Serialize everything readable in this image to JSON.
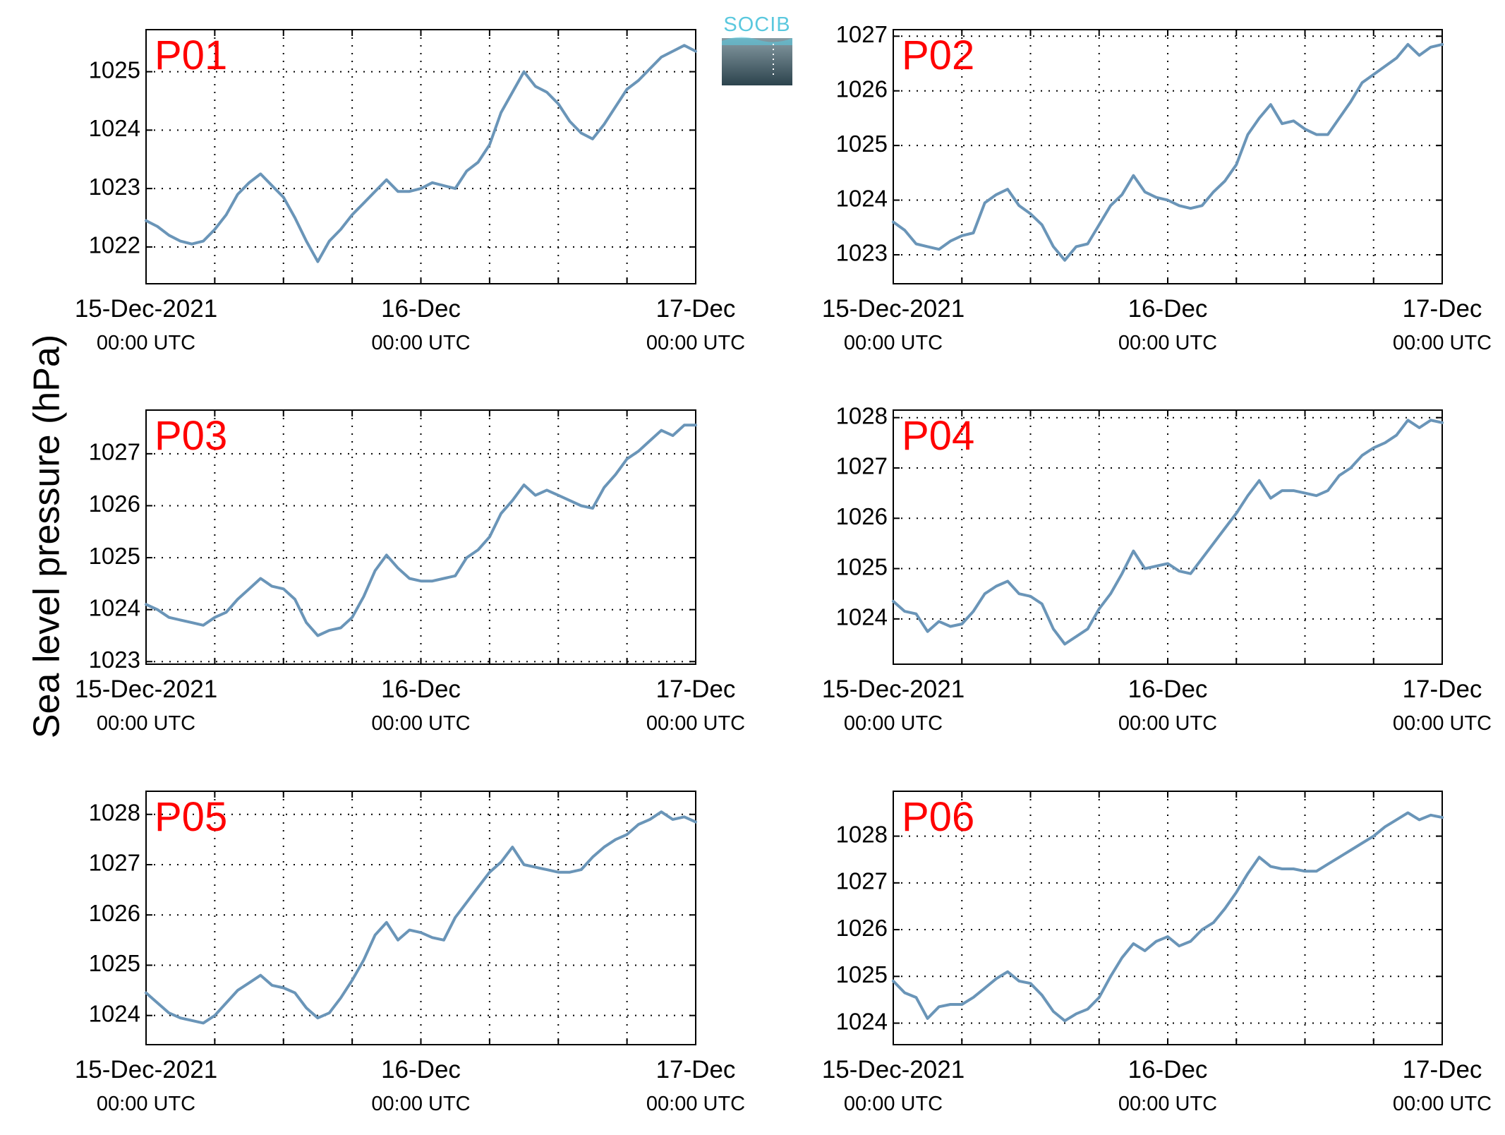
{
  "figure": {
    "ylabel": "Sea level pressure (hPa)",
    "logo_text": "SOCIB"
  },
  "colors": {
    "line": "#6a95b8",
    "panel_label": "#ff0000",
    "logo_text": "#5ac8de",
    "logo_top": "#b5c8cf",
    "logo_bottom": "#2c434d"
  },
  "chart_data": [
    {
      "type": "line",
      "panel_label": "P01",
      "x_range": [
        0,
        48
      ],
      "x_ticks": [
        {
          "x": 0,
          "label": "15-Dec-2021",
          "sub": "00:00 UTC"
        },
        {
          "x": 24,
          "label": "16-Dec",
          "sub": "00:00 UTC"
        },
        {
          "x": 48,
          "label": "17-Dec",
          "sub": "00:00 UTC"
        }
      ],
      "minor_x": [
        6,
        12,
        18,
        30,
        36,
        42
      ],
      "y_ticks": [
        1022,
        1023,
        1024,
        1025
      ],
      "ylim": [
        1021.37,
        1025.72
      ],
      "grid": true,
      "x": [
        0,
        1,
        2,
        3,
        4,
        5,
        6,
        7,
        8,
        9,
        10,
        11,
        12,
        13,
        14,
        15,
        16,
        17,
        18,
        19,
        20,
        21,
        22,
        23,
        24,
        25,
        26,
        27,
        28,
        29,
        30,
        31,
        32,
        33,
        34,
        35,
        36,
        37,
        38,
        39,
        40,
        41,
        42,
        43,
        44,
        45,
        46,
        47,
        48
      ],
      "values": [
        1022.45,
        1022.35,
        1022.2,
        1022.1,
        1022.05,
        1022.1,
        1022.3,
        1022.55,
        1022.9,
        1023.1,
        1023.25,
        1023.05,
        1022.85,
        1022.5,
        1022.1,
        1021.75,
        1022.1,
        1022.3,
        1022.55,
        1022.75,
        1022.95,
        1023.15,
        1022.95,
        1022.95,
        1023.0,
        1023.1,
        1023.05,
        1023.0,
        1023.3,
        1023.45,
        1023.75,
        1024.3,
        1024.65,
        1025.0,
        1024.75,
        1024.65,
        1024.45,
        1024.15,
        1023.95,
        1023.85,
        1024.1,
        1024.4,
        1024.7,
        1024.85,
        1025.05,
        1025.25,
        1025.35,
        1025.45,
        1025.35
      ]
    },
    {
      "type": "line",
      "panel_label": "P02",
      "x_range": [
        0,
        48
      ],
      "x_ticks": [
        {
          "x": 0,
          "label": "15-Dec-2021",
          "sub": "00:00 UTC"
        },
        {
          "x": 24,
          "label": "16-Dec",
          "sub": "00:00 UTC"
        },
        {
          "x": 48,
          "label": "17-Dec",
          "sub": "00:00 UTC"
        }
      ],
      "minor_x": [
        6,
        12,
        18,
        30,
        36,
        42
      ],
      "y_ticks": [
        1023,
        1024,
        1025,
        1026,
        1027
      ],
      "ylim": [
        1022.47,
        1027.12
      ],
      "grid": true,
      "x": [
        0,
        1,
        2,
        3,
        4,
        5,
        6,
        7,
        8,
        9,
        10,
        11,
        12,
        13,
        14,
        15,
        16,
        17,
        18,
        19,
        20,
        21,
        22,
        23,
        24,
        25,
        26,
        27,
        28,
        29,
        30,
        31,
        32,
        33,
        34,
        35,
        36,
        37,
        38,
        39,
        40,
        41,
        42,
        43,
        44,
        45,
        46,
        47,
        48
      ],
      "values": [
        1023.6,
        1023.45,
        1023.2,
        1023.15,
        1023.1,
        1023.25,
        1023.35,
        1023.4,
        1023.95,
        1024.1,
        1024.2,
        1023.9,
        1023.75,
        1023.55,
        1023.15,
        1022.9,
        1023.15,
        1023.2,
        1023.55,
        1023.9,
        1024.1,
        1024.45,
        1024.15,
        1024.05,
        1024.0,
        1023.9,
        1023.85,
        1023.9,
        1024.15,
        1024.35,
        1024.65,
        1025.2,
        1025.5,
        1025.75,
        1025.4,
        1025.45,
        1025.3,
        1025.2,
        1025.2,
        1025.5,
        1025.8,
        1026.15,
        1026.3,
        1026.45,
        1026.6,
        1026.85,
        1026.65,
        1026.8,
        1026.85
      ]
    },
    {
      "type": "line",
      "panel_label": "P03",
      "x_range": [
        0,
        48
      ],
      "x_ticks": [
        {
          "x": 0,
          "label": "15-Dec-2021",
          "sub": "00:00 UTC"
        },
        {
          "x": 24,
          "label": "16-Dec",
          "sub": "00:00 UTC"
        },
        {
          "x": 48,
          "label": "17-Dec",
          "sub": "00:00 UTC"
        }
      ],
      "minor_x": [
        6,
        12,
        18,
        30,
        36,
        42
      ],
      "y_ticks": [
        1023,
        1024,
        1025,
        1026,
        1027
      ],
      "ylim": [
        1022.95,
        1027.84
      ],
      "grid": true,
      "x": [
        0,
        1,
        2,
        3,
        4,
        5,
        6,
        7,
        8,
        9,
        10,
        11,
        12,
        13,
        14,
        15,
        16,
        17,
        18,
        19,
        20,
        21,
        22,
        23,
        24,
        25,
        26,
        27,
        28,
        29,
        30,
        31,
        32,
        33,
        34,
        35,
        36,
        37,
        38,
        39,
        40,
        41,
        42,
        43,
        44,
        45,
        46,
        47,
        48
      ],
      "values": [
        1024.1,
        1024.0,
        1023.85,
        1023.8,
        1023.75,
        1023.7,
        1023.85,
        1023.95,
        1024.2,
        1024.4,
        1024.6,
        1024.45,
        1024.4,
        1024.2,
        1023.75,
        1023.5,
        1023.6,
        1023.65,
        1023.85,
        1024.25,
        1024.75,
        1025.05,
        1024.8,
        1024.6,
        1024.55,
        1024.55,
        1024.6,
        1024.65,
        1025.0,
        1025.15,
        1025.4,
        1025.85,
        1026.1,
        1026.4,
        1026.2,
        1026.3,
        1026.2,
        1026.1,
        1026.0,
        1025.95,
        1026.35,
        1026.6,
        1026.9,
        1027.05,
        1027.25,
        1027.45,
        1027.35,
        1027.55,
        1027.55
      ]
    },
    {
      "type": "line",
      "panel_label": "P04",
      "x_range": [
        0,
        48
      ],
      "x_ticks": [
        {
          "x": 0,
          "label": "15-Dec-2021",
          "sub": "00:00 UTC"
        },
        {
          "x": 24,
          "label": "16-Dec",
          "sub": "00:00 UTC"
        },
        {
          "x": 48,
          "label": "17-Dec",
          "sub": "00:00 UTC"
        }
      ],
      "minor_x": [
        6,
        12,
        18,
        30,
        36,
        42
      ],
      "y_ticks": [
        1024,
        1025,
        1026,
        1027,
        1028
      ],
      "ylim": [
        1023.1,
        1028.15
      ],
      "grid": true,
      "x": [
        0,
        1,
        2,
        3,
        4,
        5,
        6,
        7,
        8,
        9,
        10,
        11,
        12,
        13,
        14,
        15,
        16,
        17,
        18,
        19,
        20,
        21,
        22,
        23,
        24,
        25,
        26,
        27,
        28,
        29,
        30,
        31,
        32,
        33,
        34,
        35,
        36,
        37,
        38,
        39,
        40,
        41,
        42,
        43,
        44,
        45,
        46,
        47,
        48
      ],
      "values": [
        1024.35,
        1024.15,
        1024.1,
        1023.75,
        1023.95,
        1023.85,
        1023.9,
        1024.15,
        1024.5,
        1024.65,
        1024.75,
        1024.5,
        1024.45,
        1024.3,
        1023.8,
        1023.5,
        1023.65,
        1023.8,
        1024.2,
        1024.5,
        1024.9,
        1025.35,
        1025.0,
        1025.05,
        1025.1,
        1024.95,
        1024.9,
        1025.2,
        1025.5,
        1025.8,
        1026.1,
        1026.45,
        1026.75,
        1026.4,
        1026.55,
        1026.55,
        1026.5,
        1026.45,
        1026.55,
        1026.85,
        1027.0,
        1027.25,
        1027.4,
        1027.5,
        1027.65,
        1027.95,
        1027.8,
        1027.95,
        1027.9
      ]
    },
    {
      "type": "line",
      "panel_label": "P05",
      "x_range": [
        0,
        48
      ],
      "x_ticks": [
        {
          "x": 0,
          "label": "15-Dec-2021",
          "sub": "00:00 UTC"
        },
        {
          "x": 24,
          "label": "16-Dec",
          "sub": "00:00 UTC"
        },
        {
          "x": 48,
          "label": "17-Dec",
          "sub": "00:00 UTC"
        }
      ],
      "minor_x": [
        6,
        12,
        18,
        30,
        36,
        42
      ],
      "y_ticks": [
        1024,
        1025,
        1026,
        1027,
        1028
      ],
      "ylim": [
        1023.42,
        1028.46
      ],
      "grid": true,
      "x": [
        0,
        1,
        2,
        3,
        4,
        5,
        6,
        7,
        8,
        9,
        10,
        11,
        12,
        13,
        14,
        15,
        16,
        17,
        18,
        19,
        20,
        21,
        22,
        23,
        24,
        25,
        26,
        27,
        28,
        29,
        30,
        31,
        32,
        33,
        34,
        35,
        36,
        37,
        38,
        39,
        40,
        41,
        42,
        43,
        44,
        45,
        46,
        47,
        48
      ],
      "values": [
        1024.45,
        1024.25,
        1024.05,
        1023.95,
        1023.9,
        1023.85,
        1024.0,
        1024.25,
        1024.5,
        1024.65,
        1024.8,
        1024.6,
        1024.55,
        1024.45,
        1024.15,
        1023.95,
        1024.05,
        1024.35,
        1024.7,
        1025.1,
        1025.6,
        1025.85,
        1025.5,
        1025.7,
        1025.65,
        1025.55,
        1025.5,
        1025.95,
        1026.25,
        1026.55,
        1026.85,
        1027.05,
        1027.35,
        1027.0,
        1026.95,
        1026.9,
        1026.85,
        1026.85,
        1026.9,
        1027.15,
        1027.35,
        1027.5,
        1027.6,
        1027.8,
        1027.9,
        1028.05,
        1027.9,
        1027.95,
        1027.85
      ]
    },
    {
      "type": "line",
      "panel_label": "P06",
      "x_range": [
        0,
        48
      ],
      "x_ticks": [
        {
          "x": 0,
          "label": "15-Dec-2021",
          "sub": "00:00 UTC"
        },
        {
          "x": 24,
          "label": "16-Dec",
          "sub": "00:00 UTC"
        },
        {
          "x": 48,
          "label": "17-Dec",
          "sub": "00:00 UTC"
        }
      ],
      "minor_x": [
        6,
        12,
        18,
        30,
        36,
        42
      ],
      "y_ticks": [
        1024,
        1025,
        1026,
        1027,
        1028
      ],
      "ylim": [
        1023.54,
        1028.96
      ],
      "grid": true,
      "x": [
        0,
        1,
        2,
        3,
        4,
        5,
        6,
        7,
        8,
        9,
        10,
        11,
        12,
        13,
        14,
        15,
        16,
        17,
        18,
        19,
        20,
        21,
        22,
        23,
        24,
        25,
        26,
        27,
        28,
        29,
        30,
        31,
        32,
        33,
        34,
        35,
        36,
        37,
        38,
        39,
        40,
        41,
        42,
        43,
        44,
        45,
        46,
        47,
        48
      ],
      "values": [
        1024.9,
        1024.65,
        1024.55,
        1024.1,
        1024.35,
        1024.4,
        1024.4,
        1024.55,
        1024.75,
        1024.95,
        1025.1,
        1024.9,
        1024.85,
        1024.6,
        1024.25,
        1024.05,
        1024.2,
        1024.3,
        1024.55,
        1025.0,
        1025.4,
        1025.7,
        1025.55,
        1025.75,
        1025.85,
        1025.65,
        1025.75,
        1026.0,
        1026.15,
        1026.45,
        1026.8,
        1027.2,
        1027.55,
        1027.35,
        1027.3,
        1027.3,
        1027.25,
        1027.25,
        1027.4,
        1027.55,
        1027.7,
        1027.85,
        1028.0,
        1028.2,
        1028.35,
        1028.5,
        1028.35,
        1028.45,
        1028.4
      ]
    }
  ]
}
